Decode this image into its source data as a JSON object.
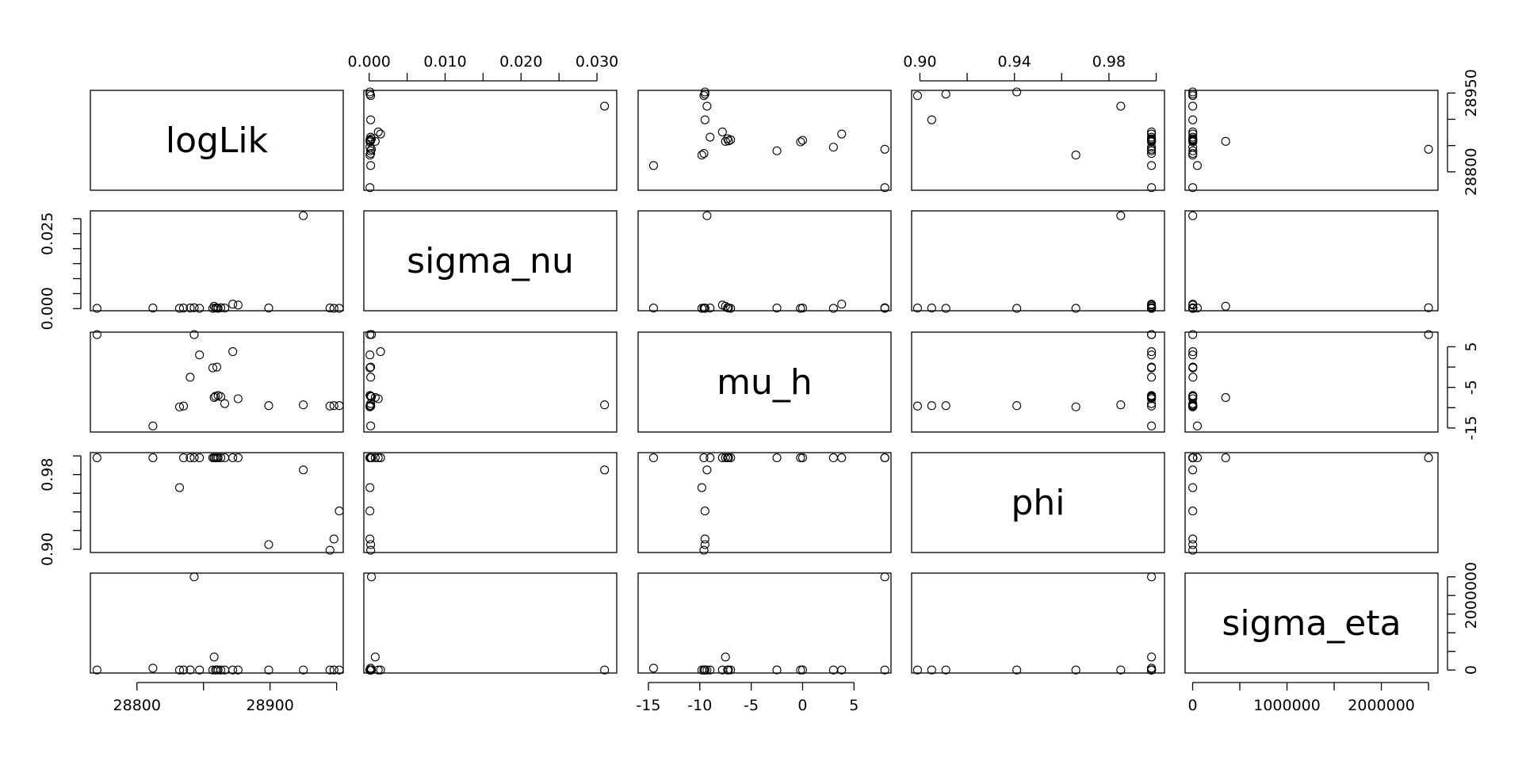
{
  "chart_data": {
    "type": "scatter",
    "variables": [
      {
        "name": "logLik",
        "axis_ticks": [
          28800,
          28850,
          28900,
          28950
        ],
        "tick_labels": [
          "28800",
          "",
          "28900",
          ""
        ],
        "right_tick_labels": [
          "28800",
          "",
          "",
          "28950"
        ],
        "range": [
          28765,
          28955
        ]
      },
      {
        "name": "sigma_nu",
        "axis_ticks": [
          0.0,
          0.005,
          0.01,
          0.015,
          0.02,
          0.025,
          0.03
        ],
        "tick_labels": [
          "0.000",
          "",
          "0.010",
          "",
          "0.020",
          "",
          "0.030"
        ],
        "left_tick_labels": [
          "0.000",
          "",
          "",
          "",
          "",
          "0.025",
          ""
        ],
        "range": [
          -0.0007,
          0.0326
        ]
      },
      {
        "name": "mu_h",
        "axis_ticks": [
          -15,
          -10,
          -5,
          0,
          5
        ],
        "tick_labels": [
          "-15",
          "-10",
          "-5",
          "0",
          "5"
        ],
        "right_tick_labels": [
          "-15",
          "",
          "-5",
          "",
          "5"
        ],
        "range": [
          -16,
          8.6
        ]
      },
      {
        "name": "phi",
        "axis_ticks": [
          0.9,
          0.92,
          0.94,
          0.96,
          0.98,
          1.0
        ],
        "tick_labels": [
          "0.90",
          "",
          "0.94",
          "",
          "0.98",
          ""
        ],
        "left_tick_labels": [
          "0.90",
          "",
          "",
          "",
          "0.98",
          ""
        ],
        "range": [
          0.8965,
          1.0035
        ]
      },
      {
        "name": "sigma_eta",
        "axis_ticks": [
          0,
          500000,
          1000000,
          1500000,
          2000000,
          2500000
        ],
        "tick_labels": [
          "0",
          "",
          "1000000",
          "",
          "2000000",
          ""
        ],
        "right_tick_labels": [
          "0",
          "",
          "",
          "",
          "2000000",
          ""
        ],
        "range": [
          -80000,
          2600000
        ]
      }
    ],
    "points": [
      {
        "logLik": 28770,
        "sigma_nu": 0.0001,
        "mu_h": 8.0,
        "phi": 0.998,
        "sigma_eta": 1000
      },
      {
        "logLik": 28812,
        "sigma_nu": 0.0002,
        "mu_h": -14.5,
        "phi": 0.998,
        "sigma_eta": 50000
      },
      {
        "logLik": 28832,
        "sigma_nu": 0.0001,
        "mu_h": -9.8,
        "phi": 0.966,
        "sigma_eta": 1000
      },
      {
        "logLik": 28835,
        "sigma_nu": 0.0002,
        "mu_h": -9.6,
        "phi": 0.998,
        "sigma_eta": 2000
      },
      {
        "logLik": 28840,
        "sigma_nu": 0.0002,
        "mu_h": -2.5,
        "phi": 0.998,
        "sigma_eta": 3000
      },
      {
        "logLik": 28843,
        "sigma_nu": 0.0003,
        "mu_h": 8.0,
        "phi": 0.998,
        "sigma_eta": 2500000
      },
      {
        "logLik": 28847,
        "sigma_nu": 0.0001,
        "mu_h": 3.0,
        "phi": 0.998,
        "sigma_eta": 1000
      },
      {
        "logLik": 28857,
        "sigma_nu": 0.0001,
        "mu_h": -0.2,
        "phi": 0.998,
        "sigma_eta": 2000
      },
      {
        "logLik": 28860,
        "sigma_nu": 0.0002,
        "mu_h": 0.0,
        "phi": 0.998,
        "sigma_eta": 3000
      },
      {
        "logLik": 28858,
        "sigma_nu": 0.0008,
        "mu_h": -7.5,
        "phi": 0.998,
        "sigma_eta": 350000
      },
      {
        "logLik": 28859,
        "sigma_nu": 0.0002,
        "mu_h": -7.2,
        "phi": 0.998,
        "sigma_eta": 1500
      },
      {
        "logLik": 28861,
        "sigma_nu": 0.0001,
        "mu_h": -7.0,
        "phi": 0.998,
        "sigma_eta": 2500
      },
      {
        "logLik": 28863,
        "sigma_nu": 0.0003,
        "mu_h": -7.3,
        "phi": 0.998,
        "sigma_eta": 1800
      },
      {
        "logLik": 28866,
        "sigma_nu": 0.0002,
        "mu_h": -9.0,
        "phi": 0.998,
        "sigma_eta": 1200
      },
      {
        "logLik": 28872,
        "sigma_nu": 0.0015,
        "mu_h": 3.8,
        "phi": 0.998,
        "sigma_eta": 2200
      },
      {
        "logLik": 28876,
        "sigma_nu": 0.0012,
        "mu_h": -7.8,
        "phi": 0.998,
        "sigma_eta": 1700
      },
      {
        "logLik": 28899,
        "sigma_nu": 0.0002,
        "mu_h": -9.5,
        "phi": 0.905,
        "sigma_eta": 1300
      },
      {
        "logLik": 28925,
        "sigma_nu": 0.031,
        "mu_h": -9.3,
        "phi": 0.985,
        "sigma_eta": 1000
      },
      {
        "logLik": 28945,
        "sigma_nu": 0.0002,
        "mu_h": -9.6,
        "phi": 0.899,
        "sigma_eta": 1400
      },
      {
        "logLik": 28948,
        "sigma_nu": 0.0001,
        "mu_h": -9.5,
        "phi": 0.911,
        "sigma_eta": 1600
      },
      {
        "logLik": 28952,
        "sigma_nu": 0.0001,
        "mu_h": -9.5,
        "phi": 0.941,
        "sigma_eta": 1100
      }
    ],
    "title": "",
    "grid": false,
    "legend": "none"
  }
}
